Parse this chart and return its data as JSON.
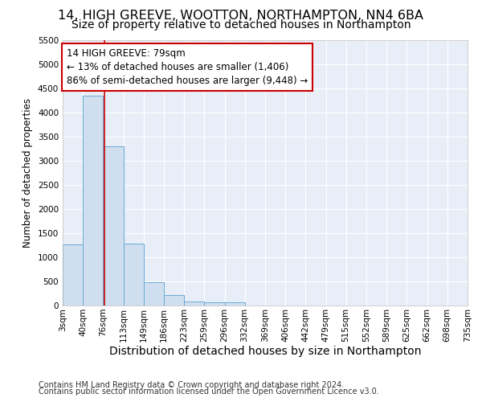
{
  "title": "14, HIGH GREEVE, WOOTTON, NORTHAMPTON, NN4 6BA",
  "subtitle": "Size of property relative to detached houses in Northampton",
  "xlabel": "Distribution of detached houses by size in Northampton",
  "ylabel": "Number of detached properties",
  "footnote1": "Contains HM Land Registry data © Crown copyright and database right 2024.",
  "footnote2": "Contains public sector information licensed under the Open Government Licence v3.0.",
  "bar_color": "#cfdff0",
  "bar_edge_color": "#6aaad4",
  "red_line_color": "#cc0000",
  "annotation_box_color": "#cc0000",
  "fig_background": "#ffffff",
  "ax_background": "#e8eef8",
  "grid_color": "#ffffff",
  "property_size": 79,
  "annotation_text": "14 HIGH GREEVE: 79sqm\n← 13% of detached houses are smaller (1,406)\n86% of semi-detached houses are larger (9,448) →",
  "bin_edges": [
    3,
    40,
    76,
    113,
    149,
    186,
    223,
    259,
    296,
    332,
    369,
    406,
    442,
    479,
    515,
    552,
    589,
    625,
    662,
    698,
    735
  ],
  "bin_values": [
    1270,
    4350,
    3300,
    1280,
    490,
    210,
    90,
    70,
    60,
    0,
    0,
    0,
    0,
    0,
    0,
    0,
    0,
    0,
    0,
    0
  ],
  "ylim": [
    0,
    5500
  ],
  "yticks": [
    0,
    500,
    1000,
    1500,
    2000,
    2500,
    3000,
    3500,
    4000,
    4500,
    5000,
    5500
  ],
  "title_fontsize": 11.5,
  "subtitle_fontsize": 10,
  "xlabel_fontsize": 10,
  "ylabel_fontsize": 8.5,
  "tick_fontsize": 7.5,
  "annotation_fontsize": 8.5,
  "footnote_fontsize": 7
}
